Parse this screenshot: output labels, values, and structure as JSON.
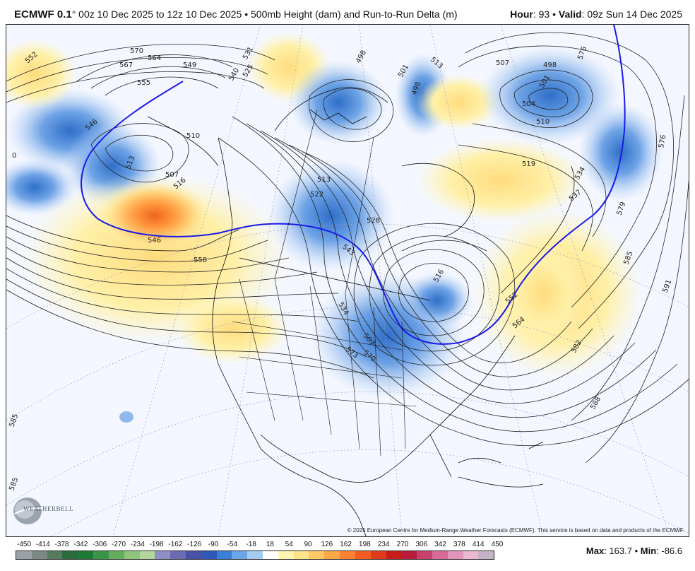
{
  "header": {
    "model_name": "ECMWF 0.1",
    "run_text": "° 00z 10 Dec 2025 to 12z 10 Dec 2025 • 500mb Height (dam) and Run-to-Run Delta (m)",
    "hour_label": "Hour",
    "hour_value": ": 93 • ",
    "valid_label": "Valid",
    "valid_value": ": 09z Sun 14 Dec 2025"
  },
  "map": {
    "copyright": "© 2025 European Centre for Medium-Range Weather Forecasts (ECMWF). This service is based on data and products of the ECMWF.",
    "logo_text": "WEATHERBELL",
    "contour_labels": [
      "546",
      "549",
      "552",
      "555",
      "558",
      "561",
      "564",
      "567",
      "570",
      "573",
      "576",
      "579",
      "582",
      "585",
      "588",
      "591",
      "498",
      "501",
      "504",
      "507",
      "510",
      "513",
      "516",
      "519",
      "522",
      "525",
      "528",
      "531",
      "534",
      "537",
      "540",
      "543",
      "0"
    ]
  },
  "colorbar": {
    "labels": [
      "-450",
      "-414",
      "-378",
      "-342",
      "-306",
      "-270",
      "-234",
      "-198",
      "-162",
      "-126",
      "-90",
      "-54",
      "-18",
      "18",
      "54",
      "90",
      "126",
      "162",
      "198",
      "234",
      "270",
      "306",
      "342",
      "378",
      "414",
      "450"
    ],
    "colors": [
      "#9aa3a8",
      "#7b8a84",
      "#557a5e",
      "#2c6b3c",
      "#1b7a35",
      "#3a9548",
      "#66ae5e",
      "#8fc47c",
      "#b2d69c",
      "#8f8fc4",
      "#6c6cb4",
      "#4a52a8",
      "#2f58b8",
      "#3a7fd6",
      "#6aa6e8",
      "#a6cbf2",
      "#ffffff",
      "#fff7b0",
      "#ffe58a",
      "#ffc966",
      "#ffa84a",
      "#ff8234",
      "#f25c22",
      "#e03a1a",
      "#c81e1a",
      "#b81c3a",
      "#c8406e",
      "#d86a98",
      "#e494bc",
      "#eab8d2",
      "#c7b3c8"
    ]
  },
  "stats": {
    "max_label": "Max",
    "max_value": ": 163.7 • ",
    "min_label": "Min",
    "min_value": ": -86.6"
  }
}
